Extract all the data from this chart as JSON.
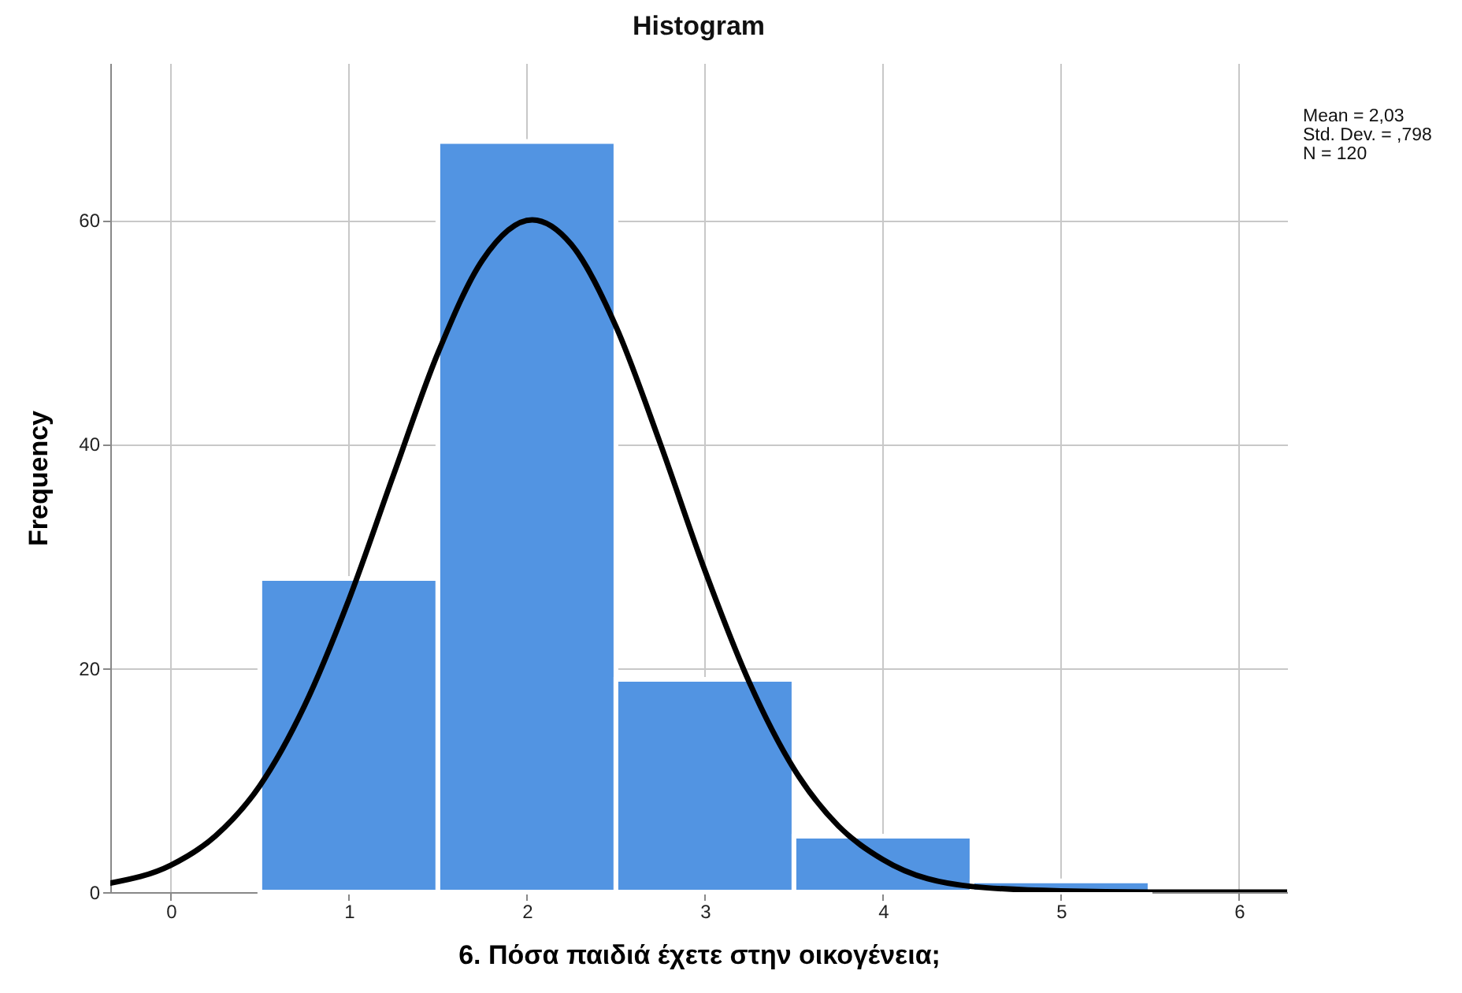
{
  "chart_data": {
    "type": "histogram",
    "title": "Histogram",
    "xlabel": "6. Πόσα παιδιά έχετε στην οικογένεια;",
    "ylabel": "Frequency",
    "bins": [
      0.5,
      1.5,
      2.5,
      3.5,
      4.5,
      5.5
    ],
    "values": [
      28,
      67,
      19,
      5,
      1
    ],
    "color": "#5294e2",
    "series": [
      {
        "type": "line",
        "color": "#000000",
        "x": [
          -0.34,
          0,
          0.25,
          0.5,
          0.75,
          1,
          1.25,
          1.5,
          1.75,
          2.03,
          2.25,
          2.5,
          2.75,
          3,
          3.25,
          3.5,
          3.75,
          4,
          4.5,
          5,
          5.5,
          6.27
        ],
        "values": [
          0.8,
          2.4,
          5,
          9.5,
          16.6,
          26.1,
          37.2,
          48.1,
          56.4,
          60,
          57.8,
          50.5,
          40,
          28.7,
          18.7,
          11,
          5.9,
          2.9,
          0.5,
          0.1,
          0,
          0
        ]
      }
    ],
    "xlim": [
      -0.34,
      6.27
    ],
    "xticks": [
      0,
      1,
      2,
      3,
      4,
      5,
      6
    ],
    "ylim": [
      0,
      74
    ],
    "yticks": [
      0,
      20,
      40,
      60
    ],
    "grid": true,
    "annotations": [
      "Mean = 2,03",
      "Std. Dev. = ,798",
      "N = 120"
    ]
  }
}
